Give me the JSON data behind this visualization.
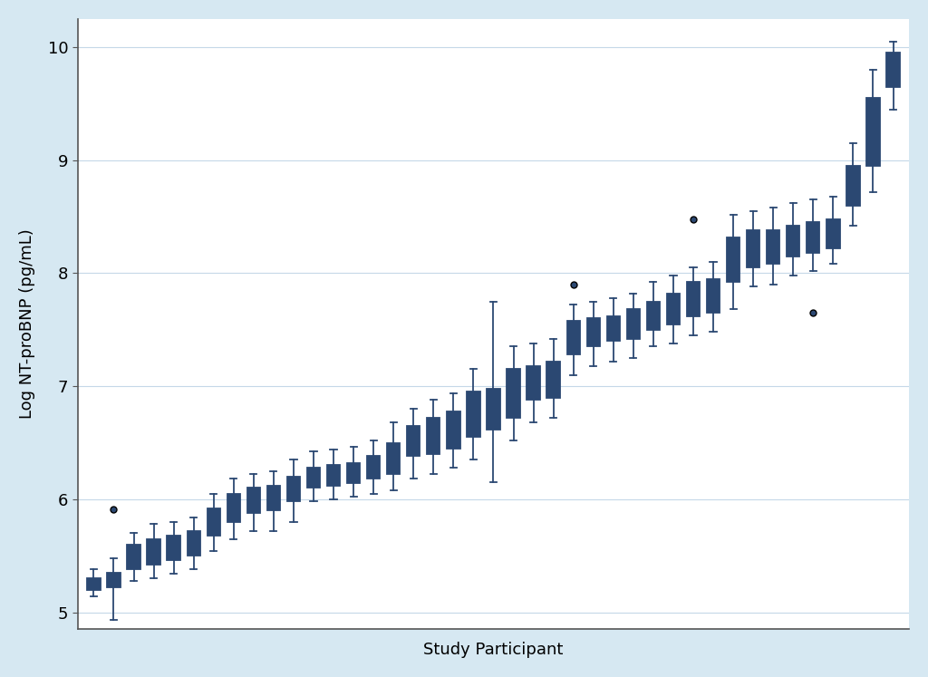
{
  "ylabel": "Log NT-proBNP (pg/mL)",
  "xlabel": "Study Participant",
  "ylim": [
    4.85,
    10.25
  ],
  "yticks": [
    5,
    6,
    7,
    8,
    9,
    10
  ],
  "background_color": "#d6e8f2",
  "plot_background_color": "#ffffff",
  "box_fill_color": "#8aaec8",
  "box_edge_color": "#2b4872",
  "median_color": "#2b4872",
  "whisker_color": "#2b4872",
  "cap_color": "#2b4872",
  "flier_color": "#2b4872",
  "participants": [
    {
      "median": 5.25,
      "q1": 5.2,
      "q3": 5.3,
      "whislo": 5.14,
      "whishi": 5.38,
      "fliers": []
    },
    {
      "median": 5.28,
      "q1": 5.22,
      "q3": 5.35,
      "whislo": 4.93,
      "whishi": 5.48,
      "fliers": [
        5.91
      ]
    },
    {
      "median": 5.48,
      "q1": 5.38,
      "q3": 5.6,
      "whislo": 5.28,
      "whishi": 5.7,
      "fliers": []
    },
    {
      "median": 5.52,
      "q1": 5.42,
      "q3": 5.65,
      "whislo": 5.3,
      "whishi": 5.78,
      "fliers": []
    },
    {
      "median": 5.56,
      "q1": 5.46,
      "q3": 5.68,
      "whislo": 5.34,
      "whishi": 5.8,
      "fliers": []
    },
    {
      "median": 5.6,
      "q1": 5.5,
      "q3": 5.72,
      "whislo": 5.38,
      "whishi": 5.84,
      "fliers": []
    },
    {
      "median": 5.8,
      "q1": 5.68,
      "q3": 5.92,
      "whislo": 5.54,
      "whishi": 6.05,
      "fliers": []
    },
    {
      "median": 5.95,
      "q1": 5.8,
      "q3": 6.05,
      "whislo": 5.65,
      "whishi": 6.18,
      "fliers": []
    },
    {
      "median": 6.0,
      "q1": 5.88,
      "q3": 6.1,
      "whislo": 5.72,
      "whishi": 6.22,
      "fliers": []
    },
    {
      "median": 6.02,
      "q1": 5.9,
      "q3": 6.12,
      "whislo": 5.72,
      "whishi": 6.25,
      "fliers": []
    },
    {
      "median": 6.1,
      "q1": 5.98,
      "q3": 6.2,
      "whislo": 5.8,
      "whishi": 6.35,
      "fliers": []
    },
    {
      "median": 6.18,
      "q1": 6.1,
      "q3": 6.28,
      "whislo": 5.98,
      "whishi": 6.42,
      "fliers": []
    },
    {
      "median": 6.2,
      "q1": 6.12,
      "q3": 6.3,
      "whislo": 6.0,
      "whishi": 6.44,
      "fliers": []
    },
    {
      "median": 6.22,
      "q1": 6.14,
      "q3": 6.32,
      "whislo": 6.02,
      "whishi": 6.46,
      "fliers": []
    },
    {
      "median": 6.28,
      "q1": 6.18,
      "q3": 6.38,
      "whislo": 6.05,
      "whishi": 6.52,
      "fliers": []
    },
    {
      "median": 6.35,
      "q1": 6.22,
      "q3": 6.5,
      "whislo": 6.08,
      "whishi": 6.68,
      "fliers": []
    },
    {
      "median": 6.5,
      "q1": 6.38,
      "q3": 6.65,
      "whislo": 6.18,
      "whishi": 6.8,
      "fliers": []
    },
    {
      "median": 6.55,
      "q1": 6.4,
      "q3": 6.72,
      "whislo": 6.22,
      "whishi": 6.88,
      "fliers": []
    },
    {
      "median": 6.6,
      "q1": 6.45,
      "q3": 6.78,
      "whislo": 6.28,
      "whishi": 6.94,
      "fliers": []
    },
    {
      "median": 6.75,
      "q1": 6.55,
      "q3": 6.95,
      "whislo": 6.35,
      "whishi": 7.15,
      "fliers": []
    },
    {
      "median": 6.8,
      "q1": 6.62,
      "q3": 6.98,
      "whislo": 6.15,
      "whishi": 7.75,
      "fliers": []
    },
    {
      "median": 6.92,
      "q1": 6.72,
      "q3": 7.15,
      "whislo": 6.52,
      "whishi": 7.35,
      "fliers": []
    },
    {
      "median": 7.02,
      "q1": 6.88,
      "q3": 7.18,
      "whislo": 6.68,
      "whishi": 7.38,
      "fliers": []
    },
    {
      "median": 7.08,
      "q1": 6.9,
      "q3": 7.22,
      "whislo": 6.72,
      "whishi": 7.42,
      "fliers": []
    },
    {
      "median": 7.42,
      "q1": 7.28,
      "q3": 7.58,
      "whislo": 7.1,
      "whishi": 7.72,
      "fliers": [
        7.9
      ]
    },
    {
      "median": 7.48,
      "q1": 7.35,
      "q3": 7.6,
      "whislo": 7.18,
      "whishi": 7.75,
      "fliers": []
    },
    {
      "median": 7.52,
      "q1": 7.4,
      "q3": 7.62,
      "whislo": 7.22,
      "whishi": 7.78,
      "fliers": []
    },
    {
      "median": 7.55,
      "q1": 7.42,
      "q3": 7.68,
      "whislo": 7.25,
      "whishi": 7.82,
      "fliers": []
    },
    {
      "median": 7.62,
      "q1": 7.5,
      "q3": 7.75,
      "whislo": 7.35,
      "whishi": 7.92,
      "fliers": []
    },
    {
      "median": 7.7,
      "q1": 7.55,
      "q3": 7.82,
      "whislo": 7.38,
      "whishi": 7.98,
      "fliers": []
    },
    {
      "median": 7.78,
      "q1": 7.62,
      "q3": 7.92,
      "whislo": 7.45,
      "whishi": 8.05,
      "fliers": [
        8.48
      ]
    },
    {
      "median": 7.8,
      "q1": 7.65,
      "q3": 7.95,
      "whislo": 7.48,
      "whishi": 8.1,
      "fliers": []
    },
    {
      "median": 8.12,
      "q1": 7.92,
      "q3": 8.32,
      "whislo": 7.68,
      "whishi": 8.52,
      "fliers": []
    },
    {
      "median": 8.2,
      "q1": 8.05,
      "q3": 8.38,
      "whislo": 7.88,
      "whishi": 8.55,
      "fliers": []
    },
    {
      "median": 8.22,
      "q1": 8.08,
      "q3": 8.38,
      "whislo": 7.9,
      "whishi": 8.58,
      "fliers": []
    },
    {
      "median": 8.28,
      "q1": 8.15,
      "q3": 8.42,
      "whislo": 7.98,
      "whishi": 8.62,
      "fliers": []
    },
    {
      "median": 8.3,
      "q1": 8.18,
      "q3": 8.45,
      "whislo": 8.02,
      "whishi": 8.65,
      "fliers": [
        7.65
      ]
    },
    {
      "median": 8.35,
      "q1": 8.22,
      "q3": 8.48,
      "whislo": 8.08,
      "whishi": 8.68,
      "fliers": []
    },
    {
      "median": 8.78,
      "q1": 8.6,
      "q3": 8.95,
      "whislo": 8.42,
      "whishi": 9.15,
      "fliers": []
    },
    {
      "median": 9.2,
      "q1": 8.95,
      "q3": 9.55,
      "whislo": 8.72,
      "whishi": 9.8,
      "fliers": []
    },
    {
      "median": 9.82,
      "q1": 9.65,
      "q3": 9.95,
      "whislo": 9.45,
      "whishi": 10.05,
      "fliers": []
    }
  ]
}
